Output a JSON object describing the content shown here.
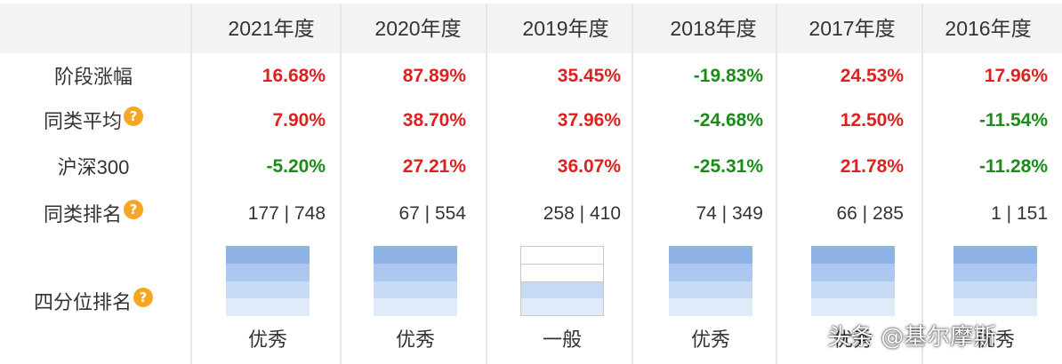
{
  "columns": [
    "2021年度",
    "2020年度",
    "2019年度",
    "2018年度",
    "2017年度",
    "2016年度"
  ],
  "rows": {
    "stage_gain": {
      "label": "阶段涨幅",
      "values": [
        "16.68%",
        "87.89%",
        "35.45%",
        "-19.83%",
        "24.53%",
        "17.96%"
      ]
    },
    "peer_avg": {
      "label": "同类平均",
      "values": [
        "7.90%",
        "38.70%",
        "37.96%",
        "-24.68%",
        "12.50%",
        "-11.54%"
      ]
    },
    "csi300": {
      "label": "沪深300",
      "values": [
        "-5.20%",
        "27.21%",
        "36.07%",
        "-25.31%",
        "21.78%",
        "-11.28%"
      ]
    },
    "peer_rank": {
      "label": "同类排名",
      "values": [
        "177 | 748",
        "67 | 554",
        "258 | 410",
        "74 | 349",
        "66 | 285",
        "1 | 151"
      ]
    }
  },
  "quartile": {
    "label": "四分位排名",
    "values": [
      "优秀",
      "优秀",
      "一般",
      "优秀",
      "优秀",
      "优秀"
    ]
  },
  "help_glyph": "?",
  "colors": {
    "positive": "#e02020",
    "negative": "#1a8c1a",
    "help_icon": "#f5a623",
    "quartile_fill": "#8fb3e6"
  },
  "watermark": "头条 @基尔摩斯"
}
